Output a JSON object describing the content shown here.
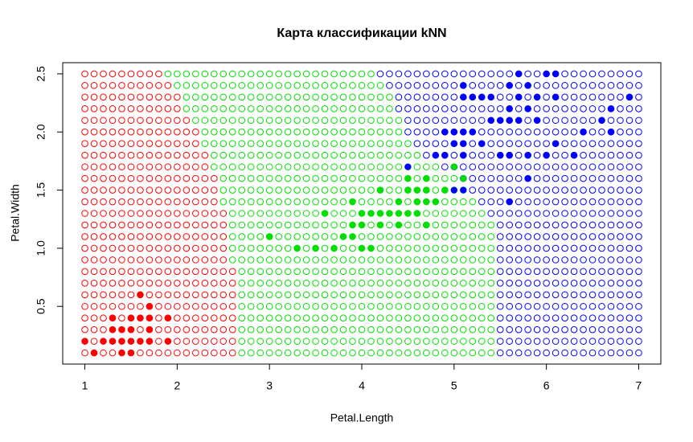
{
  "chart_data": {
    "type": "scatter",
    "title": "Карта классификации kNN",
    "xlabel": "Petal.Length",
    "ylabel": "Petal.Width",
    "xlim": [
      0.76,
      7.24
    ],
    "ylim": [
      0.004,
      2.596
    ],
    "xticks": [
      1,
      2,
      3,
      4,
      5,
      6,
      7
    ],
    "yticks": [
      0.5,
      {
        "value": 1,
        "label": "1.0"
      },
      1.5,
      {
        "value": 2,
        "label": "2.0"
      },
      2.5
    ],
    "grid": {
      "step": 0.1,
      "classes": [
        {
          "color": "#ff0000",
          "rows": [
            [
              2.5,
              1.0,
              1.8
            ],
            [
              2.4,
              1.0,
              1.9
            ],
            [
              2.3,
              1.0,
              2.0
            ],
            [
              2.2,
              1.0,
              2.0
            ],
            [
              2.1,
              1.0,
              2.1
            ],
            [
              2.0,
              1.0,
              2.2
            ],
            [
              1.9,
              1.0,
              2.2
            ],
            [
              1.8,
              1.0,
              2.3
            ],
            [
              1.7,
              1.0,
              2.3
            ],
            [
              1.6,
              1.0,
              2.4
            ],
            [
              1.5,
              1.0,
              2.4
            ],
            [
              1.4,
              1.0,
              2.4
            ],
            [
              1.3,
              1.0,
              2.5
            ],
            [
              1.2,
              1.0,
              2.5
            ],
            [
              1.1,
              1.0,
              2.5
            ],
            [
              1.0,
              1.0,
              2.5
            ],
            [
              0.9,
              1.0,
              2.5
            ],
            [
              0.8,
              1.0,
              2.6
            ],
            [
              0.7,
              1.0,
              2.6
            ],
            [
              0.6,
              1.0,
              2.6
            ],
            [
              0.5,
              1.0,
              2.6
            ],
            [
              0.4,
              1.0,
              2.6
            ],
            [
              0.3,
              1.0,
              2.6
            ],
            [
              0.2,
              1.0,
              2.6
            ],
            [
              0.1,
              1.0,
              2.6
            ]
          ]
        },
        {
          "color": "#00e000",
          "rows": [
            [
              2.5,
              1.9,
              4.1
            ],
            [
              2.4,
              2.0,
              4.2
            ],
            [
              2.3,
              2.1,
              4.3
            ],
            [
              2.2,
              2.1,
              4.3
            ],
            [
              2.1,
              2.2,
              4.4
            ],
            [
              2.0,
              2.3,
              4.4
            ],
            [
              1.9,
              2.3,
              4.5
            ],
            [
              1.8,
              2.4,
              4.6
            ],
            [
              1.7,
              2.4,
              4.8
            ],
            [
              1.6,
              2.5,
              5.0
            ],
            [
              1.5,
              2.5,
              5.1
            ],
            [
              1.4,
              2.5,
              5.2
            ],
            [
              1.3,
              2.6,
              5.3
            ],
            [
              1.2,
              2.6,
              5.4
            ],
            [
              1.1,
              2.6,
              5.4
            ],
            [
              1.0,
              2.6,
              5.4
            ],
            [
              0.9,
              2.6,
              5.4
            ],
            [
              0.8,
              2.7,
              5.4
            ],
            [
              0.7,
              2.7,
              5.4
            ],
            [
              0.6,
              2.7,
              5.4
            ],
            [
              0.5,
              2.7,
              5.4
            ],
            [
              0.4,
              2.7,
              5.4
            ],
            [
              0.3,
              2.7,
              5.4
            ],
            [
              0.2,
              2.7,
              5.4
            ],
            [
              0.1,
              2.7,
              5.4
            ]
          ]
        },
        {
          "color": "#0000ff",
          "rows": [
            [
              2.5,
              4.2,
              7.0
            ],
            [
              2.4,
              4.3,
              7.0
            ],
            [
              2.3,
              4.4,
              7.0
            ],
            [
              2.2,
              4.4,
              7.0
            ],
            [
              2.1,
              4.5,
              7.0
            ],
            [
              2.0,
              4.5,
              7.0
            ],
            [
              1.9,
              4.6,
              7.0
            ],
            [
              1.8,
              4.7,
              7.0
            ],
            [
              1.7,
              4.9,
              7.0
            ],
            [
              1.6,
              5.1,
              7.0
            ],
            [
              1.5,
              5.2,
              7.0
            ],
            [
              1.4,
              5.3,
              7.0
            ],
            [
              1.3,
              5.4,
              7.0
            ],
            [
              1.2,
              5.5,
              7.0
            ],
            [
              1.1,
              5.5,
              7.0
            ],
            [
              1.0,
              5.5,
              7.0
            ],
            [
              0.9,
              5.5,
              7.0
            ],
            [
              0.8,
              5.5,
              7.0
            ],
            [
              0.7,
              5.5,
              7.0
            ],
            [
              0.6,
              5.5,
              7.0
            ],
            [
              0.5,
              5.5,
              7.0
            ],
            [
              0.4,
              5.5,
              7.0
            ],
            [
              0.3,
              5.5,
              7.0
            ],
            [
              0.2,
              5.5,
              7.0
            ],
            [
              0.1,
              5.5,
              7.0
            ]
          ]
        }
      ]
    },
    "series": [
      {
        "color": "#ff0000",
        "x": [
          1.0,
          1.1,
          1.2,
          1.3,
          1.3,
          1.3,
          1.4,
          1.4,
          1.4,
          1.5,
          1.5,
          1.5,
          1.5,
          1.6,
          1.6,
          1.6,
          1.7,
          1.7,
          1.7,
          1.7,
          1.9,
          1.9
        ],
        "y": [
          0.2,
          0.1,
          0.2,
          0.2,
          0.3,
          0.4,
          0.1,
          0.2,
          0.3,
          0.1,
          0.2,
          0.3,
          0.4,
          0.2,
          0.4,
          0.6,
          0.2,
          0.3,
          0.4,
          0.5,
          0.2,
          0.4
        ]
      },
      {
        "color": "#00e000",
        "x": [
          3.0,
          3.3,
          3.5,
          3.6,
          3.7,
          3.8,
          3.9,
          3.9,
          3.9,
          4.0,
          4.0,
          4.0,
          4.1,
          4.1,
          4.2,
          4.2,
          4.2,
          4.3,
          4.4,
          4.4,
          4.4,
          4.5,
          4.5,
          4.5,
          4.6,
          4.6,
          4.6,
          4.7,
          4.7,
          4.7,
          4.7,
          4.8,
          4.8,
          4.9,
          5.0,
          5.1
        ],
        "y": [
          1.1,
          1.0,
          1.0,
          1.3,
          1.0,
          1.1,
          1.1,
          1.2,
          1.4,
          1.0,
          1.2,
          1.3,
          1.0,
          1.3,
          1.2,
          1.3,
          1.5,
          1.3,
          1.2,
          1.3,
          1.4,
          1.3,
          1.5,
          1.6,
          1.3,
          1.4,
          1.5,
          1.2,
          1.4,
          1.5,
          1.6,
          1.4,
          1.8,
          1.5,
          1.7,
          1.6
        ]
      },
      {
        "color": "#0000ff",
        "x": [
          4.5,
          4.8,
          4.9,
          5.0,
          5.1,
          4.9,
          5.0,
          5.0,
          5.1,
          5.1,
          5.1,
          5.1,
          5.1,
          5.2,
          5.2,
          5.3,
          5.3,
          5.4,
          5.4,
          5.5,
          5.5,
          5.6,
          5.6,
          5.6,
          5.6,
          5.6,
          5.7,
          5.7,
          5.7,
          5.8,
          5.8,
          5.8,
          5.8,
          5.9,
          5.9,
          6.0,
          6.0,
          6.1,
          6.1,
          6.1,
          6.3,
          6.4,
          6.6,
          6.7,
          6.7,
          6.9
        ],
        "y": [
          1.7,
          1.8,
          1.8,
          1.5,
          1.5,
          2.0,
          2.0,
          1.9,
          1.8,
          1.9,
          2.0,
          2.3,
          2.4,
          2.0,
          2.3,
          1.9,
          2.3,
          2.1,
          2.3,
          1.8,
          2.1,
          1.4,
          1.8,
          2.1,
          2.2,
          2.4,
          2.1,
          2.3,
          2.5,
          1.6,
          1.8,
          2.2,
          2.4,
          2.1,
          2.3,
          1.8,
          2.5,
          1.9,
          2.3,
          2.5,
          1.8,
          2.0,
          2.1,
          2.0,
          2.2,
          2.3
        ]
      }
    ]
  }
}
